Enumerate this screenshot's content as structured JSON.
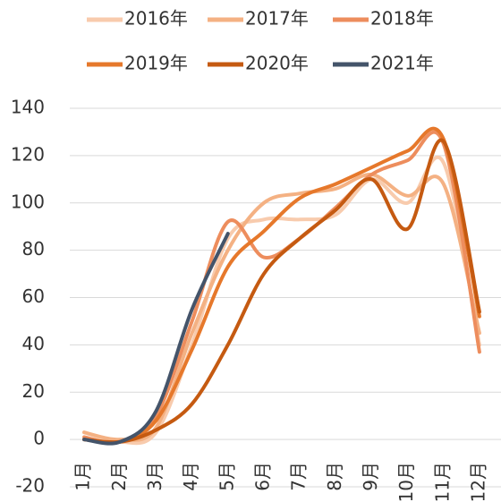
{
  "chart_data": {
    "type": "line",
    "categories": [
      "1月",
      "2月",
      "3月",
      "4月",
      "5月",
      "6月",
      "7月",
      "8月",
      "9月",
      "10月",
      "11月",
      "12月"
    ],
    "series": [
      {
        "name": "2016年",
        "color": "#f8cbad",
        "values": [
          3,
          -1,
          3,
          40,
          85,
          93,
          93,
          95,
          110,
          100,
          117,
          40
        ]
      },
      {
        "name": "2017年",
        "color": "#f4b183",
        "values": [
          3,
          0,
          5,
          45,
          80,
          100,
          104,
          106,
          112,
          103,
          108,
          45
        ]
      },
      {
        "name": "2018年",
        "color": "#ed8d5d",
        "values": [
          1,
          -1,
          10,
          50,
          92,
          77,
          85,
          98,
          112,
          118,
          125,
          37
        ]
      },
      {
        "name": "2019年",
        "color": "#e6782b",
        "values": [
          0,
          -1,
          8,
          38,
          73,
          88,
          102,
          108,
          115,
          122,
          127,
          52
        ]
      },
      {
        "name": "2020年",
        "color": "#c55a11",
        "values": [
          0,
          -1,
          4,
          15,
          40,
          70,
          85,
          97,
          110,
          89,
          126,
          54
        ]
      },
      {
        "name": "2021年",
        "color": "#44546a",
        "values": [
          0,
          -1,
          12,
          55,
          87,
          null,
          null,
          null,
          null,
          null,
          null,
          null
        ]
      }
    ],
    "ylim": [
      -20,
      140
    ],
    "yticks": [
      -20,
      0,
      20,
      40,
      60,
      80,
      100,
      120,
      140
    ],
    "grid": true,
    "legend": "top"
  }
}
